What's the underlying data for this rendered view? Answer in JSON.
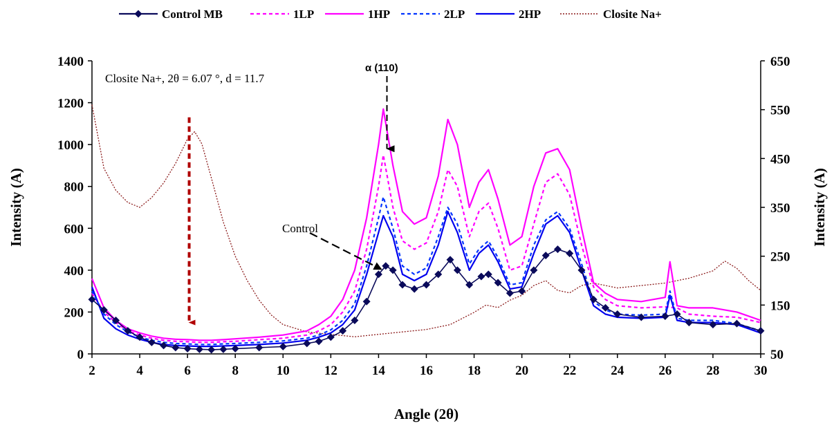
{
  "chart_data": {
    "type": "line",
    "xlabel": "Angle (2θ)",
    "ylabel_left": "Intensity (A)",
    "ylabel_right": "Intensity (A)",
    "xlim": [
      2,
      30
    ],
    "ylim_left": [
      0,
      1400
    ],
    "ylim_right": [
      50,
      650
    ],
    "x_ticks": [
      2,
      4,
      6,
      8,
      10,
      12,
      14,
      16,
      18,
      20,
      22,
      24,
      26,
      28,
      30
    ],
    "y_ticks_left": [
      0,
      200,
      400,
      600,
      800,
      1000,
      1200,
      1400
    ],
    "y_ticks_right": [
      50,
      150,
      250,
      350,
      450,
      550,
      650
    ],
    "legend_position": "top",
    "grid": false,
    "annotations": {
      "closite": "Closite Na+, 2θ = 6.07 °, d = 11.7",
      "alpha": "α (110)",
      "control": "Control"
    },
    "series": [
      {
        "name": "Control MB",
        "axis": "left",
        "color": "#0a0a5a",
        "style": "marker",
        "x": [
          2,
          2.5,
          3,
          3.5,
          4,
          4.5,
          5,
          5.5,
          6,
          6.5,
          7,
          7.5,
          8,
          9,
          10,
          11,
          11.5,
          12,
          12.5,
          13,
          13.5,
          14,
          14.3,
          14.6,
          15,
          15.5,
          16,
          16.5,
          17,
          17.3,
          17.8,
          18.3,
          18.6,
          19,
          19.5,
          20,
          20.5,
          21,
          21.5,
          22,
          22.5,
          23,
          23.5,
          24,
          25,
          26,
          26.5,
          27,
          28,
          29,
          30
        ],
        "values": [
          260,
          210,
          160,
          110,
          80,
          55,
          40,
          30,
          25,
          22,
          20,
          22,
          25,
          30,
          35,
          50,
          60,
          80,
          110,
          160,
          250,
          380,
          420,
          400,
          330,
          310,
          330,
          380,
          450,
          400,
          330,
          370,
          380,
          340,
          290,
          300,
          400,
          470,
          500,
          480,
          400,
          260,
          220,
          190,
          175,
          180,
          190,
          150,
          140,
          145,
          110
        ]
      },
      {
        "name": "1LP",
        "axis": "left",
        "color": "#ff00ff",
        "style": "dot",
        "x": [
          2,
          2.5,
          3,
          3.5,
          4,
          4.5,
          5,
          5.5,
          6,
          6.5,
          7,
          7.5,
          8,
          9,
          10,
          11,
          11.5,
          12,
          12.5,
          13,
          13.5,
          14,
          14.2,
          14.6,
          15,
          15.5,
          16,
          16.5,
          16.9,
          17.3,
          17.8,
          18.2,
          18.6,
          19,
          19.5,
          20,
          20.5,
          21,
          21.5,
          22,
          22.5,
          23,
          23.5,
          24,
          25,
          26,
          26.5,
          27,
          28,
          29,
          30
        ],
        "values": [
          290,
          200,
          150,
          110,
          90,
          75,
          65,
          60,
          58,
          55,
          55,
          58,
          60,
          68,
          75,
          90,
          110,
          140,
          200,
          300,
          500,
          800,
          950,
          700,
          540,
          500,
          530,
          680,
          880,
          800,
          560,
          680,
          720,
          600,
          400,
          420,
          620,
          820,
          860,
          760,
          520,
          320,
          260,
          230,
          220,
          225,
          220,
          190,
          180,
          175,
          150
        ]
      },
      {
        "name": "1HP",
        "axis": "left",
        "color": "#ff00ff",
        "style": "solid",
        "x": [
          2,
          2.5,
          3,
          3.5,
          4,
          4.5,
          5,
          5.5,
          6,
          6.5,
          7,
          7.5,
          8,
          9,
          10,
          11,
          11.5,
          12,
          12.5,
          13,
          13.5,
          14,
          14.2,
          14.6,
          15,
          15.5,
          16,
          16.5,
          16.9,
          17.3,
          17.8,
          18.2,
          18.6,
          19,
          19.5,
          20,
          20.5,
          21,
          21.5,
          22,
          22.5,
          23,
          23.5,
          24,
          25,
          26,
          26.2,
          26.5,
          27,
          28,
          29,
          30
        ],
        "values": [
          360,
          220,
          160,
          120,
          100,
          85,
          75,
          70,
          68,
          65,
          65,
          68,
          72,
          80,
          90,
          110,
          140,
          180,
          260,
          400,
          650,
          1000,
          1170,
          900,
          680,
          620,
          650,
          850,
          1120,
          1000,
          700,
          820,
          880,
          740,
          520,
          560,
          800,
          960,
          980,
          880,
          600,
          340,
          290,
          260,
          250,
          270,
          440,
          230,
          220,
          220,
          200,
          160
        ]
      },
      {
        "name": "2LP",
        "axis": "left",
        "color": "#0033ff",
        "style": "dot",
        "x": [
          2,
          2.5,
          3,
          3.5,
          4,
          4.5,
          5,
          5.5,
          6,
          6.5,
          7,
          7.5,
          8,
          9,
          10,
          11,
          11.5,
          12,
          12.5,
          13,
          13.5,
          14,
          14.2,
          14.6,
          15,
          15.5,
          16,
          16.5,
          16.9,
          17.3,
          17.8,
          18.2,
          18.6,
          19,
          19.5,
          20,
          20.5,
          21,
          21.5,
          22,
          22.5,
          23,
          23.5,
          24,
          25,
          26,
          26.2,
          26.5,
          27,
          28,
          29,
          30
        ],
        "values": [
          300,
          190,
          140,
          105,
          80,
          65,
          55,
          50,
          48,
          45,
          45,
          48,
          50,
          55,
          62,
          75,
          90,
          115,
          160,
          240,
          420,
          650,
          750,
          600,
          420,
          380,
          410,
          560,
          700,
          620,
          430,
          500,
          540,
          460,
          330,
          340,
          520,
          640,
          680,
          600,
          430,
          250,
          210,
          190,
          185,
          190,
          300,
          170,
          160,
          160,
          145,
          110
        ]
      },
      {
        "name": "2HP",
        "axis": "left",
        "color": "#0000ee",
        "style": "solid",
        "x": [
          2,
          2.5,
          3,
          3.5,
          4,
          4.5,
          5,
          5.5,
          6,
          6.5,
          7,
          7.5,
          8,
          9,
          10,
          11,
          11.5,
          12,
          12.5,
          13,
          13.5,
          14,
          14.2,
          14.6,
          15,
          15.5,
          16,
          16.5,
          16.9,
          17.3,
          17.8,
          18.2,
          18.6,
          19,
          19.5,
          20,
          20.5,
          21,
          21.5,
          22,
          22.5,
          23,
          23.5,
          24,
          25,
          26,
          26.2,
          26.5,
          27,
          28,
          29,
          30
        ],
        "values": [
          320,
          170,
          120,
          90,
          70,
          55,
          45,
          40,
          38,
          36,
          36,
          38,
          40,
          45,
          52,
          65,
          80,
          100,
          140,
          210,
          380,
          580,
          660,
          560,
          380,
          350,
          380,
          520,
          680,
          580,
          400,
          480,
          520,
          440,
          310,
          320,
          480,
          620,
          660,
          580,
          400,
          230,
          190,
          175,
          170,
          175,
          280,
          160,
          150,
          150,
          140,
          100
        ]
      },
      {
        "name": "Closite Na+",
        "axis": "right",
        "color": "#8b1a1a",
        "style": "dash",
        "x": [
          2,
          2.5,
          3,
          3.5,
          4,
          4.5,
          5,
          5.5,
          6,
          6.3,
          6.6,
          7,
          7.5,
          8,
          8.5,
          9,
          9.5,
          10,
          11,
          12,
          13,
          14,
          15,
          16,
          17,
          18,
          18.5,
          19,
          19.5,
          20,
          20.5,
          21,
          21.5,
          22,
          22.5,
          23,
          24,
          25,
          26,
          27,
          28,
          28.5,
          29,
          29.5,
          30
        ],
        "values": [
          560,
          430,
          385,
          360,
          350,
          370,
          400,
          440,
          490,
          505,
          480,
          410,
          320,
          250,
          200,
          160,
          130,
          110,
          95,
          90,
          85,
          90,
          95,
          100,
          110,
          135,
          150,
          145,
          160,
          170,
          190,
          200,
          180,
          175,
          190,
          195,
          185,
          190,
          195,
          205,
          220,
          240,
          225,
          200,
          180
        ]
      }
    ]
  }
}
